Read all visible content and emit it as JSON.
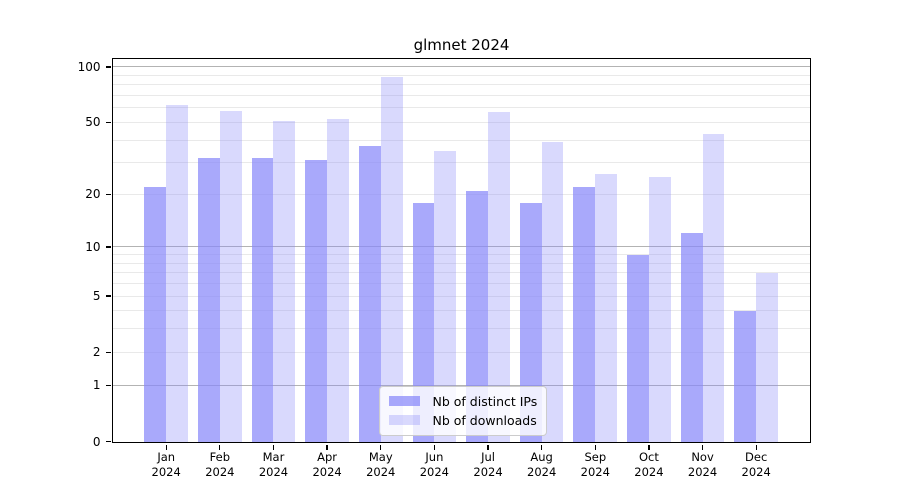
{
  "chart_data": {
    "type": "bar",
    "title": "glmnet 2024",
    "categories": [
      "Jan 2024",
      "Feb 2024",
      "Mar 2024",
      "Apr 2024",
      "May 2024",
      "Jun 2024",
      "Jul 2024",
      "Aug 2024",
      "Sep 2024",
      "Oct 2024",
      "Nov 2024",
      "Dec 2024"
    ],
    "series": [
      {
        "name": "Nb of distinct IPs",
        "color_hex": "#a9a9fb",
        "color_rgba": "rgba(136,136,250,0.72)",
        "values": [
          22,
          32,
          32,
          31,
          37,
          18,
          21,
          18,
          22,
          9,
          12,
          4
        ]
      },
      {
        "name": "Nb of downloads",
        "color_hex": "#d9d9fb",
        "color_rgba": "rgba(136,136,250,0.32)",
        "values": [
          62,
          58,
          51,
          52,
          88,
          35,
          57,
          39,
          26,
          25,
          43,
          7
        ]
      }
    ],
    "xlabel": "",
    "ylabel": "",
    "yscale": "log1p",
    "ylim": [
      0,
      111
    ],
    "yticks": [
      100,
      50,
      20,
      10,
      5,
      2,
      1,
      0
    ],
    "grid_major": [
      1,
      10,
      100
    ],
    "grid_minor": [
      2,
      3,
      4,
      5,
      6,
      7,
      8,
      9,
      20,
      30,
      40,
      50,
      60,
      70,
      80,
      90
    ],
    "grid": true,
    "legend_position": "lower center"
  },
  "legend": {
    "items": [
      {
        "label": "Nb of distinct IPs"
      },
      {
        "label": "Nb of downloads"
      }
    ]
  },
  "colors": {
    "bar_base": "#8888fa",
    "grid_major": "#b3b3b3",
    "grid_minor": "#e9e9e9",
    "axis": "#000000",
    "legend_border": "#cccccc",
    "legend_bg": "rgba(255,255,255,0.8)"
  }
}
